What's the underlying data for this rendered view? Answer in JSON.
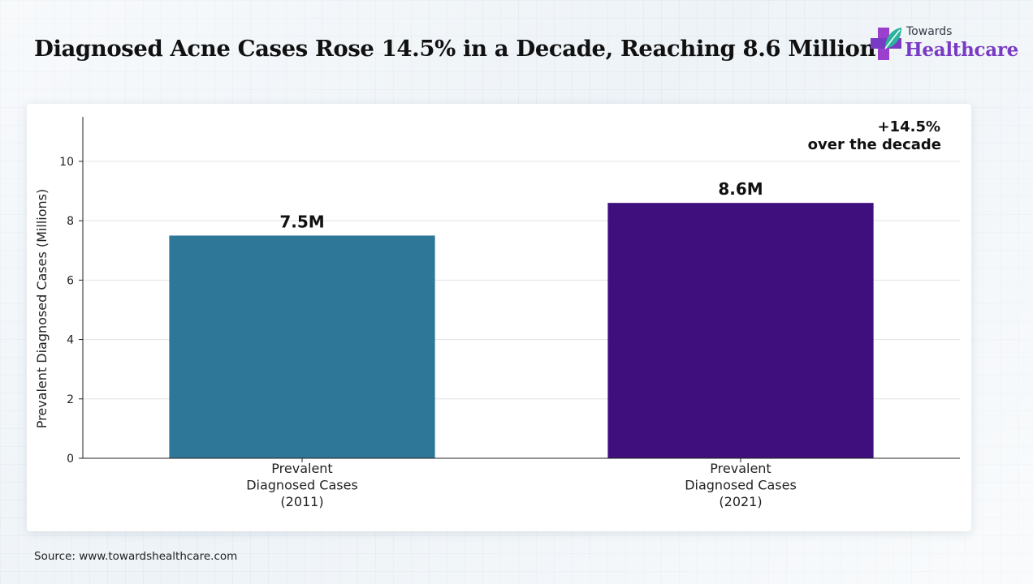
{
  "title": "Diagnosed Acne Cases Rose 14.5% in a Decade, Reaching 8.6 Million",
  "logo": {
    "line1": "Towards",
    "line2": "Healthcare",
    "colors": {
      "purple": "#7a3bc4",
      "teal": "#2bb3a0",
      "magenta": "#9b3fcf"
    }
  },
  "source": "Source: www.towardshealthcare.com",
  "annotation": {
    "line1": "+14.5%",
    "line2": "over the decade"
  },
  "chart_data": {
    "type": "bar",
    "categories": [
      [
        "Prevalent",
        "Diagnosed Cases",
        "(2011)"
      ],
      [
        "Prevalent",
        "Diagnosed Cases",
        "(2021)"
      ]
    ],
    "values": [
      7.5,
      8.6
    ],
    "data_labels": [
      "7.5M",
      "8.6M"
    ],
    "colors": [
      "#2e7798",
      "#3f0f7e"
    ],
    "ylabel": "Prevalent Diagnosed Cases (Millions)",
    "ylim": [
      0,
      11.5
    ],
    "yticks": [
      0,
      2,
      4,
      6,
      8,
      10
    ],
    "grid": true
  }
}
